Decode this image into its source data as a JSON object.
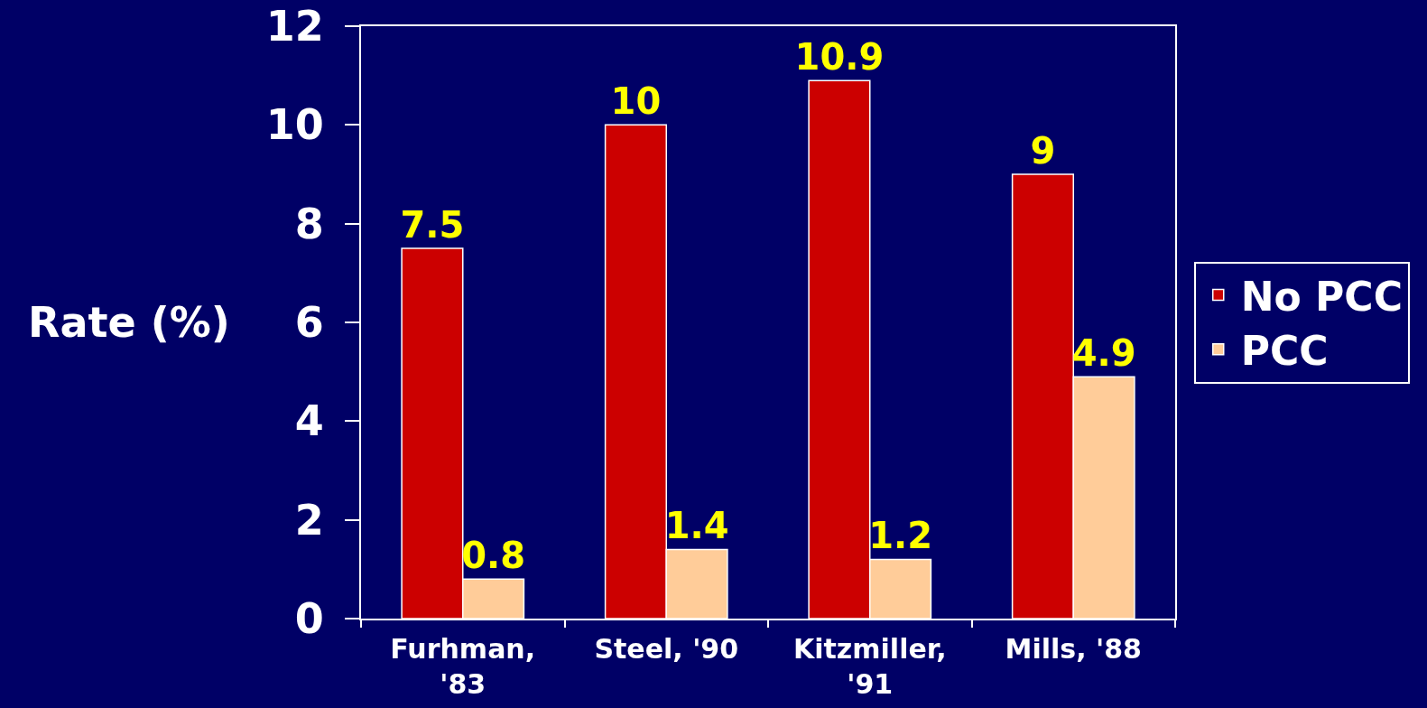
{
  "chart_data": {
    "type": "bar",
    "ylabel": "Rate (%)",
    "categories": [
      "Furhman, '83",
      "Steel, '90",
      "Kitzmiller, '91",
      "Mills, '88"
    ],
    "series": [
      {
        "name": "No PCC",
        "color": "#cc0000",
        "values": [
          7.5,
          10,
          10.9,
          9
        ]
      },
      {
        "name": "PCC",
        "color": "#ffcc99",
        "values": [
          0.8,
          1.4,
          1.2,
          4.9
        ]
      }
    ],
    "ylim": [
      0,
      12
    ],
    "yticks": [
      0,
      2,
      4,
      6,
      8,
      10,
      12
    ],
    "grid": false,
    "legend": "right",
    "data_labels": true
  }
}
